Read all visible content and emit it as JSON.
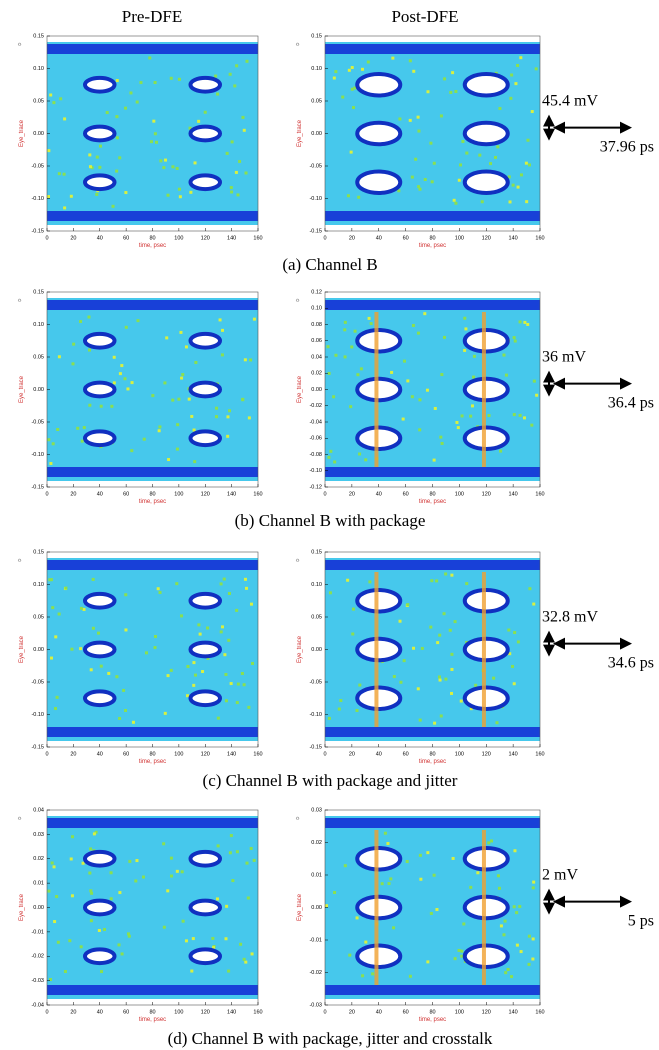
{
  "headers": [
    "Pre-DFE",
    "Post-DFE"
  ],
  "rows": [
    {
      "caption": "(a) Channel B",
      "annotation": {
        "height": "45.4 mV",
        "width": "37.96 ps"
      },
      "panels": [
        {
          "ylabel": "Eye_trace",
          "xlabel": "time, psec",
          "xlim": [
            0,
            160
          ],
          "xticks": [
            0,
            20,
            40,
            60,
            80,
            100,
            120,
            140,
            160
          ],
          "ylim": [
            -0.15,
            0.15
          ],
          "yticks": [
            -0.15,
            {
              "value": -0.1,
              "label": "-0.10"
            },
            -0.05,
            {
              "value": 0,
              "label": "0.00"
            },
            0.05,
            {
              "value": 0.1,
              "label": "0.10"
            },
            0.15
          ]
        },
        {
          "ylabel": "Eye_trace",
          "xlabel": "time, psec",
          "xlim": [
            0,
            160
          ],
          "xticks": [
            0,
            20,
            40,
            60,
            80,
            100,
            120,
            140,
            160
          ],
          "ylim": [
            -0.15,
            0.15
          ],
          "yticks": [
            -0.15,
            {
              "value": -0.1,
              "label": "-0.10"
            },
            -0.05,
            {
              "value": 0,
              "label": "0.00"
            },
            0.05,
            {
              "value": 0.1,
              "label": "0.10"
            },
            0.15
          ]
        }
      ]
    },
    {
      "caption": "(b) Channel B with package",
      "annotation": {
        "height": "36 mV",
        "width": "36.4 ps"
      },
      "panels": [
        {
          "ylabel": "Eye_trace",
          "xlabel": "time, psec",
          "xlim": [
            0,
            160
          ],
          "xticks": [
            0,
            20,
            40,
            60,
            80,
            100,
            120,
            140,
            160
          ],
          "ylim": [
            -0.15,
            0.15
          ],
          "yticks": [
            -0.15,
            {
              "value": -0.1,
              "label": "-0.10"
            },
            -0.05,
            {
              "value": 0,
              "label": "0.00"
            },
            0.05,
            {
              "value": 0.1,
              "label": "0.10"
            },
            0.15
          ]
        },
        {
          "ylabel": "Eye_trace",
          "xlabel": "time, psec",
          "xlim": [
            0,
            160
          ],
          "xticks": [
            0,
            20,
            40,
            60,
            80,
            100,
            120,
            140,
            160
          ],
          "ylim": [
            -0.12,
            0.12
          ],
          "yticks": [
            -0.12,
            {
              "value": -0.1,
              "label": "-0.10"
            },
            -0.08,
            -0.06,
            -0.04,
            -0.02,
            {
              "value": 0,
              "label": "0.00"
            },
            0.02,
            0.04,
            0.06,
            0.08,
            {
              "value": 0.1,
              "label": "0.10"
            },
            0.12
          ]
        }
      ]
    },
    {
      "caption": "(c) Channel B with package and jitter",
      "annotation": {
        "height": "32.8 mV",
        "width": "34.6 ps"
      },
      "panels": [
        {
          "ylabel": "Eye_trace",
          "xlabel": "time, psec",
          "xlim": [
            0,
            160
          ],
          "xticks": [
            0,
            20,
            40,
            60,
            80,
            100,
            120,
            140,
            160
          ],
          "ylim": [
            -0.15,
            0.15
          ],
          "yticks": [
            -0.15,
            {
              "value": -0.1,
              "label": "-0.10"
            },
            -0.05,
            {
              "value": 0,
              "label": "0.00"
            },
            0.05,
            {
              "value": 0.1,
              "label": "0.10"
            },
            0.15
          ]
        },
        {
          "ylabel": "Eye_trace",
          "xlabel": "time, psec",
          "xlim": [
            0,
            160
          ],
          "xticks": [
            0,
            20,
            40,
            60,
            80,
            100,
            120,
            140,
            160
          ],
          "ylim": [
            -0.15,
            0.15
          ],
          "yticks": [
            -0.15,
            {
              "value": -0.1,
              "label": "-0.10"
            },
            -0.05,
            {
              "value": 0,
              "label": "0.00"
            },
            0.05,
            {
              "value": 0.1,
              "label": "0.10"
            },
            0.15
          ]
        }
      ]
    },
    {
      "caption": "(d) Channel B with package, jitter and crosstalk",
      "annotation": {
        "height": "2 mV",
        "width": "5 ps"
      },
      "panels": [
        {
          "ylabel": "Eye_trace",
          "xlabel": "time, psec",
          "xlim": [
            0,
            160
          ],
          "xticks": [
            0,
            20,
            40,
            60,
            80,
            100,
            120,
            140,
            160
          ],
          "ylim": [
            -0.04,
            0.04
          ],
          "yticks": [
            -0.04,
            -0.03,
            -0.02,
            -0.01,
            {
              "value": 0,
              "label": "0.00"
            },
            0.01,
            0.02,
            0.03,
            0.04
          ]
        },
        {
          "ylabel": "Eye_trace",
          "xlabel": "time, psec",
          "xlim": [
            0,
            160
          ],
          "xticks": [
            0,
            20,
            40,
            60,
            80,
            100,
            120,
            140,
            160
          ],
          "ylim": [
            -0.03,
            0.03
          ],
          "yticks": [
            -0.03,
            -0.02,
            -0.01,
            {
              "value": 0,
              "label": "0.00"
            },
            0.01,
            0.02,
            0.03
          ]
        }
      ]
    }
  ]
}
